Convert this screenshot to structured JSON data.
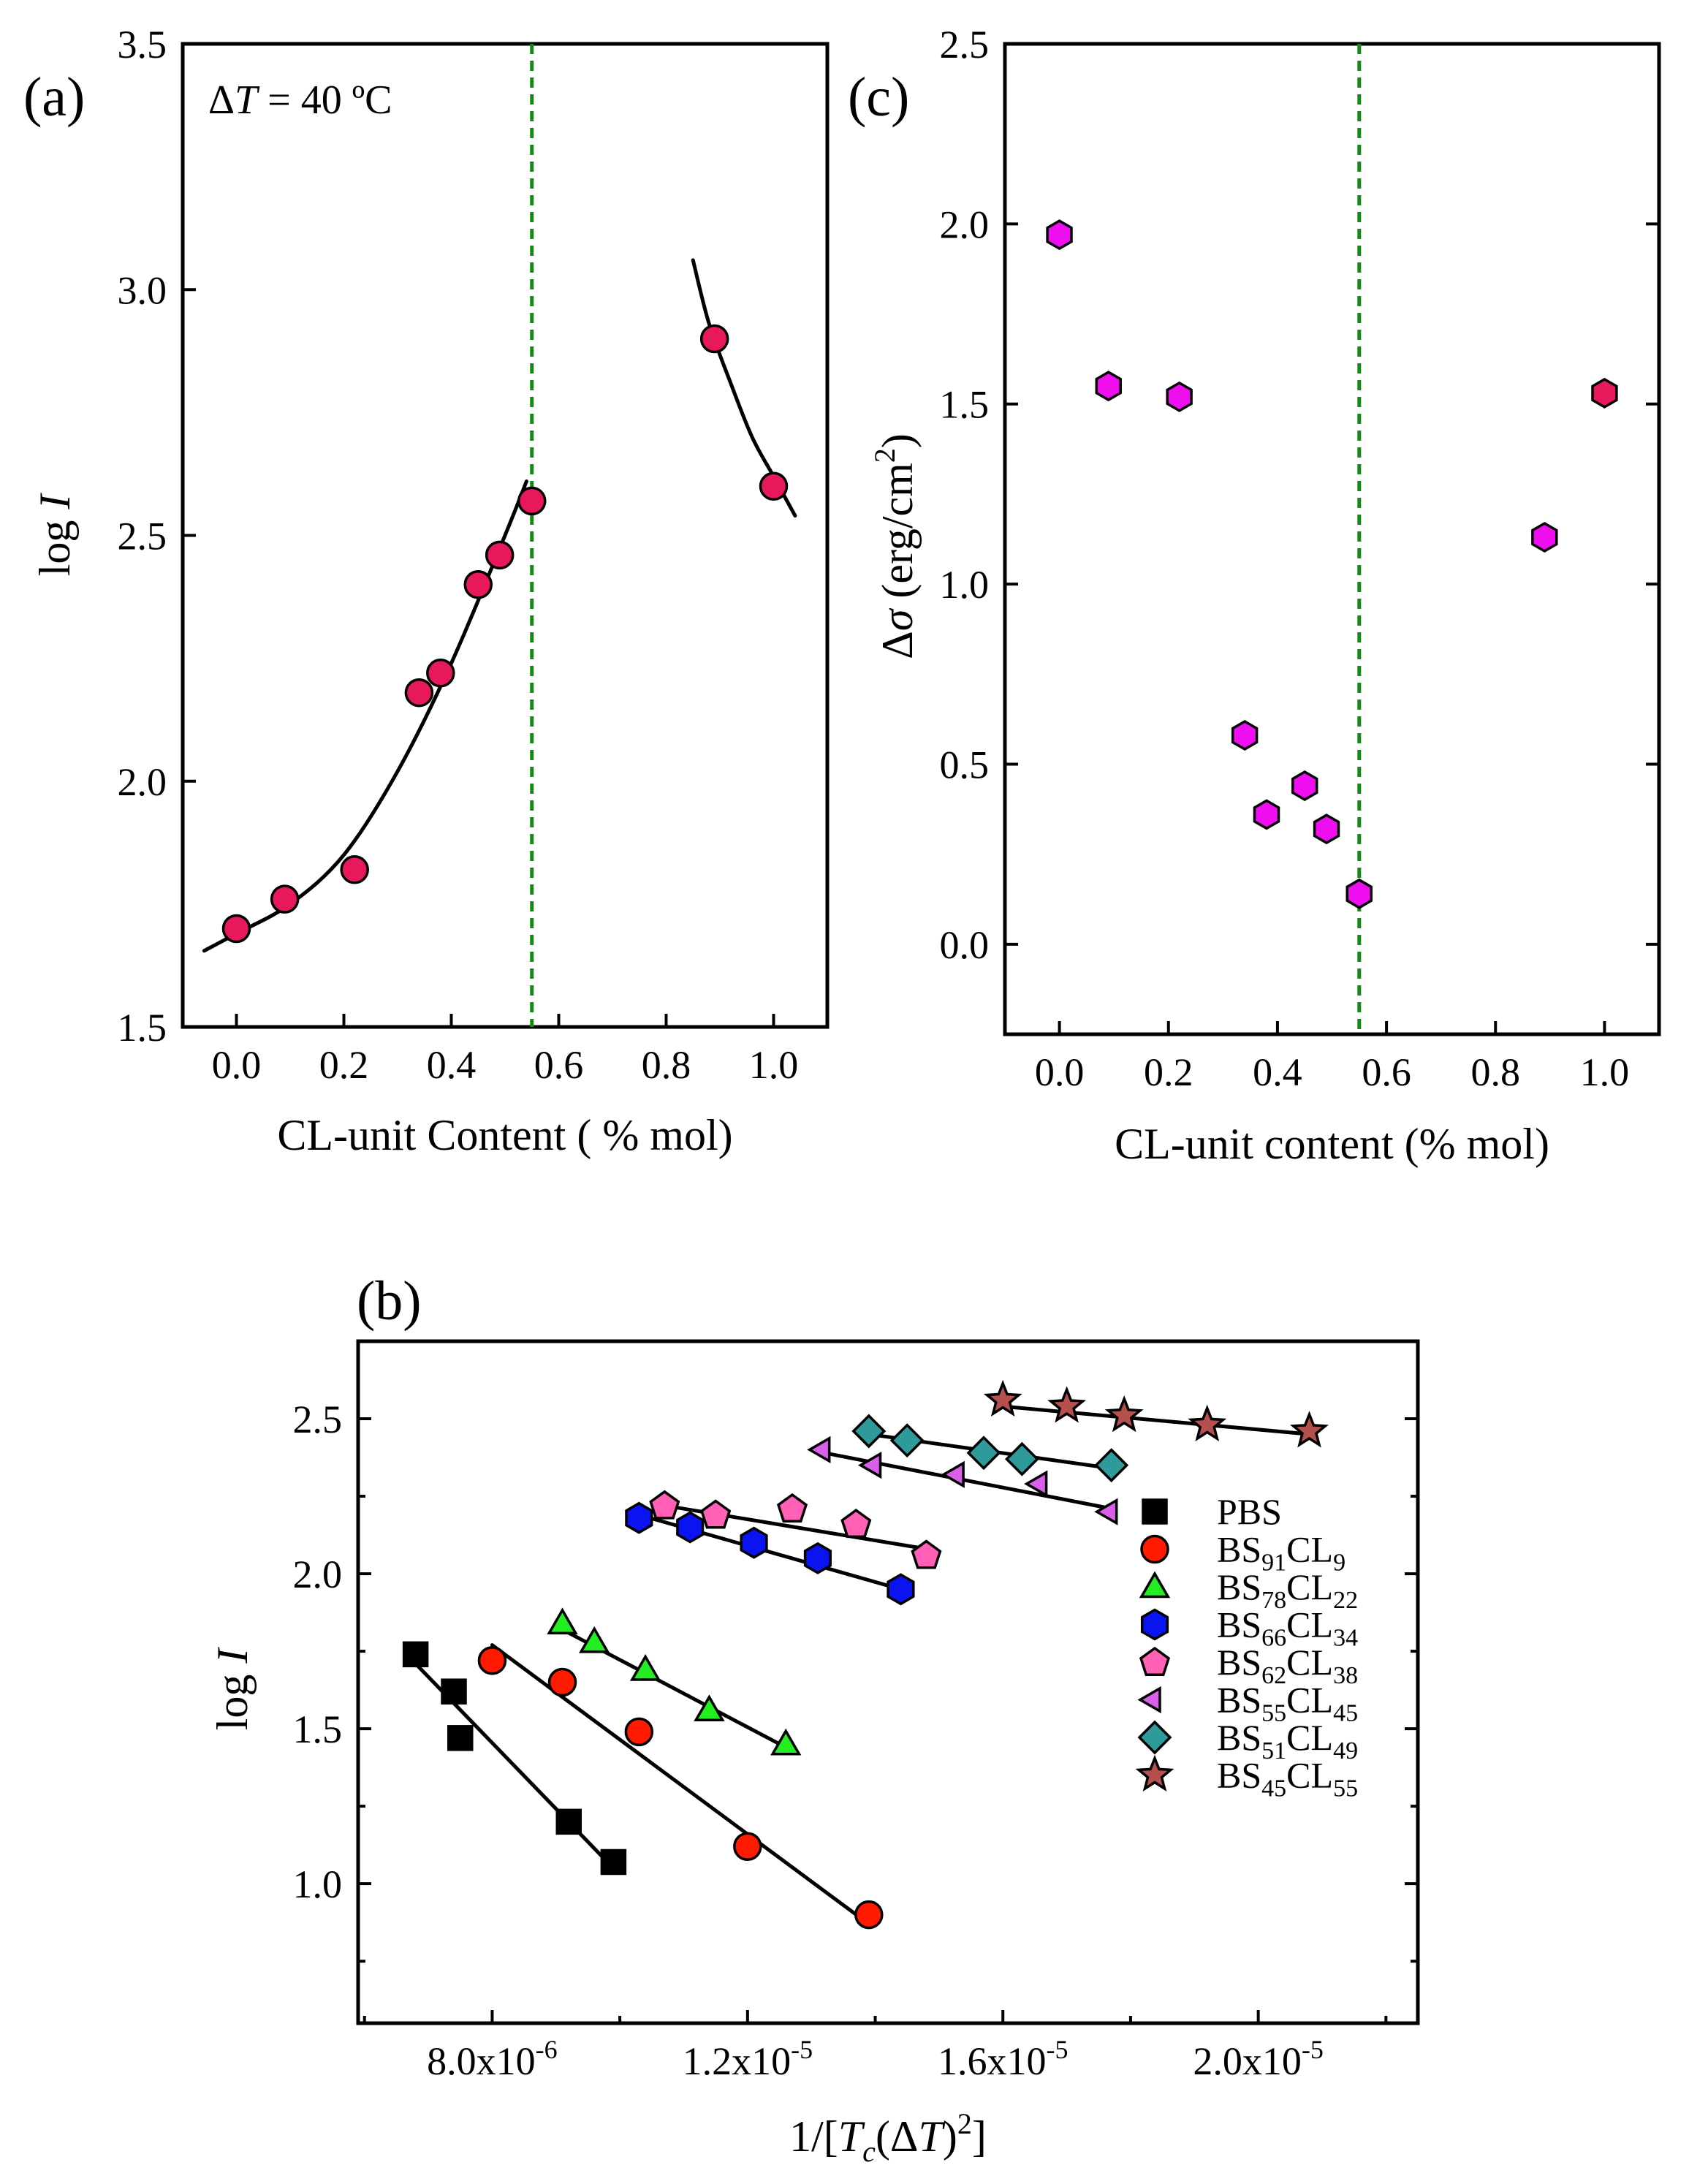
{
  "chart_data": [
    {
      "id": "a",
      "type": "scatter",
      "panel_label": "(a)",
      "annotation": {
        "prefix": "Δ",
        "var": "T",
        "rest": " = 40 ºC"
      },
      "xlabel": "CL-unit Content ( % mol)",
      "ylabel": {
        "main": "log ",
        "var": "I"
      },
      "xlim": [
        -0.1,
        1.1
      ],
      "ylim": [
        1.5,
        3.5
      ],
      "xticks": [
        0.0,
        0.2,
        0.4,
        0.6,
        0.8,
        1.0
      ],
      "xtick_labels": [
        "0.0",
        "0.2",
        "0.4",
        "0.6",
        "0.8",
        "1.0"
      ],
      "yticks": [
        1.5,
        2.0,
        2.5,
        3.0,
        3.5
      ],
      "ytick_labels": [
        "1.5",
        "2.0",
        "2.5",
        "3.0",
        "3.5"
      ],
      "vline_x": 0.55,
      "vline_color": "#138a13",
      "marker_color": "#e8195a",
      "points": [
        {
          "x": 0.0,
          "y": 1.7
        },
        {
          "x": 0.09,
          "y": 1.76
        },
        {
          "x": 0.22,
          "y": 1.82
        },
        {
          "x": 0.34,
          "y": 2.18
        },
        {
          "x": 0.38,
          "y": 2.22
        },
        {
          "x": 0.45,
          "y": 2.4
        },
        {
          "x": 0.49,
          "y": 2.46
        },
        {
          "x": 0.55,
          "y": 2.57
        },
        {
          "x": 0.89,
          "y": 2.9
        },
        {
          "x": 1.0,
          "y": 2.6
        }
      ],
      "fit_curves": [
        {
          "x": [
            -0.06,
            0.0,
            0.1,
            0.2,
            0.3,
            0.4,
            0.5,
            0.54
          ],
          "y": [
            1.655,
            1.69,
            1.75,
            1.85,
            2.02,
            2.24,
            2.5,
            2.61
          ]
        },
        {
          "x": [
            0.85,
            0.88,
            0.92,
            0.96,
            1.0,
            1.04
          ],
          "y": [
            3.06,
            2.93,
            2.81,
            2.7,
            2.62,
            2.54
          ]
        }
      ]
    },
    {
      "id": "c",
      "type": "scatter",
      "panel_label": "(c)",
      "xlabel": "CL-unit content (% mol)",
      "ylabel": {
        "main": "Δ",
        "var": "σ",
        "rest": " (erg/cm",
        "sup": "2",
        "end": ")"
      },
      "xlim": [
        -0.1,
        1.1
      ],
      "ylim": [
        -0.25,
        2.5
      ],
      "xticks": [
        0.0,
        0.2,
        0.4,
        0.6,
        0.8,
        1.0
      ],
      "xtick_labels": [
        "0.0",
        "0.2",
        "0.4",
        "0.6",
        "0.8",
        "1.0"
      ],
      "yticks": [
        0.0,
        0.5,
        1.0,
        1.5,
        2.0,
        2.5
      ],
      "ytick_labels": [
        "0.0",
        "0.5",
        "1.0",
        "1.5",
        "2.0",
        "2.5"
      ],
      "vline_x": 0.55,
      "vline_color": "#138a13",
      "marker_color": "#ee0ef0",
      "last_marker_color": "#e8195a",
      "points": [
        {
          "x": 0.0,
          "y": 1.97
        },
        {
          "x": 0.09,
          "y": 1.55
        },
        {
          "x": 0.22,
          "y": 1.52
        },
        {
          "x": 0.34,
          "y": 0.58
        },
        {
          "x": 0.38,
          "y": 0.36
        },
        {
          "x": 0.45,
          "y": 0.44
        },
        {
          "x": 0.49,
          "y": 0.32
        },
        {
          "x": 0.55,
          "y": 0.14
        },
        {
          "x": 0.89,
          "y": 1.13
        },
        {
          "x": 1.0,
          "y": 1.53
        }
      ]
    },
    {
      "id": "b",
      "type": "scatter",
      "panel_label": "(b)",
      "xlabel": {
        "pre": "1/[",
        "var": "T",
        "sub": "c",
        "mid": "(Δ",
        "var2": "T",
        "end": ")",
        "sup": "2",
        "close": "]"
      },
      "ylabel": {
        "main": "log ",
        "var": "I"
      },
      "xlim": [
        5.9e-06,
        2.25e-05
      ],
      "ylim": [
        0.55,
        2.75
      ],
      "xticks": [
        8e-06,
        1.2e-05,
        1.6e-05,
        2e-05
      ],
      "xtick_labels": [
        {
          "base": "8.0x10",
          "exp": "-6"
        },
        {
          "base": "1.2x10",
          "exp": "-5"
        },
        {
          "base": "1.6x10",
          "exp": "-5"
        },
        {
          "base": "2.0x10",
          "exp": "-5"
        }
      ],
      "minor_xticks": [
        6e-06,
        1e-05,
        1.4e-05,
        1.8e-05,
        2.2e-05
      ],
      "yticks": [
        1.0,
        1.5,
        2.0,
        2.5
      ],
      "ytick_labels": [
        "1.0",
        "1.5",
        "2.0",
        "2.5"
      ],
      "minor_yticks": [
        0.75,
        1.25,
        1.75,
        2.25
      ],
      "series": [
        {
          "name": "PBS",
          "label": {
            "main": "PBS"
          },
          "marker": "square",
          "color": "#000000",
          "x": [
            6.8e-06,
            7.4e-06,
            7.5e-06,
            9.2e-06,
            9.9e-06
          ],
          "y": [
            1.74,
            1.62,
            1.47,
            1.2,
            1.07
          ],
          "fit": {
            "x": [
              6.8e-06,
              9.9e-06
            ],
            "y": [
              1.71,
              1.05
            ]
          }
        },
        {
          "name": "BS91CL9",
          "label": {
            "a": "BS",
            "s1": "91",
            "b": "CL",
            "s2": "9"
          },
          "marker": "circle",
          "color": "#ff1a00",
          "x": [
            8e-06,
            9.1e-06,
            1.03e-05,
            1.2e-05,
            1.39e-05
          ],
          "y": [
            1.72,
            1.65,
            1.49,
            1.12,
            0.9
          ],
          "fit": {
            "x": [
              8e-06,
              1.39e-05
            ],
            "y": [
              1.77,
              0.87
            ]
          }
        },
        {
          "name": "BS78CL22",
          "label": {
            "a": "BS",
            "s1": "78",
            "b": "CL",
            "s2": "22"
          },
          "marker": "triangle-up",
          "color": "#22ee22",
          "x": [
            9.1e-06,
            9.6e-06,
            1.04e-05,
            1.14e-05,
            1.26e-05
          ],
          "y": [
            1.84,
            1.78,
            1.69,
            1.56,
            1.45
          ],
          "fit": {
            "x": [
              9.1e-06,
              1.26e-05
            ],
            "y": [
              1.82,
              1.44
            ]
          }
        },
        {
          "name": "BS66CL34",
          "label": {
            "a": "BS",
            "s1": "66",
            "b": "CL",
            "s2": "34"
          },
          "marker": "hexagon",
          "color": "#0a14f0",
          "x": [
            1.03e-05,
            1.11e-05,
            1.21e-05,
            1.31e-05,
            1.44e-05
          ],
          "y": [
            2.18,
            2.15,
            2.1,
            2.05,
            1.95
          ],
          "fit": {
            "x": [
              1.03e-05,
              1.44e-05
            ],
            "y": [
              2.19,
              1.95
            ]
          }
        },
        {
          "name": "BS62CL38",
          "label": {
            "a": "BS",
            "s1": "62",
            "b": "CL",
            "s2": "38"
          },
          "marker": "pentagon",
          "color": "#ff5fb4",
          "x": [
            1.07e-05,
            1.15e-05,
            1.27e-05,
            1.37e-05,
            1.48e-05
          ],
          "y": [
            2.22,
            2.19,
            2.21,
            2.16,
            2.06
          ],
          "fit": {
            "x": [
              1.07e-05,
              1.48e-05
            ],
            "y": [
              2.22,
              2.08
            ]
          }
        },
        {
          "name": "BS55CL45",
          "label": {
            "a": "BS",
            "s1": "55",
            "b": "CL",
            "s2": "45"
          },
          "marker": "triangle-left",
          "color": "#d95ee8",
          "x": [
            1.32e-05,
            1.4e-05,
            1.53e-05,
            1.66e-05,
            1.77e-05
          ],
          "y": [
            2.4,
            2.35,
            2.32,
            2.29,
            2.2
          ],
          "fit": {
            "x": [
              1.32e-05,
              1.77e-05
            ],
            "y": [
              2.39,
              2.21
            ]
          }
        },
        {
          "name": "BS51CL49",
          "label": {
            "a": "BS",
            "s1": "51",
            "b": "CL",
            "s2": "49"
          },
          "marker": "diamond",
          "color": "#2e9a9a",
          "x": [
            1.39e-05,
            1.45e-05,
            1.57e-05,
            1.63e-05,
            1.77e-05
          ],
          "y": [
            2.46,
            2.43,
            2.39,
            2.37,
            2.35
          ],
          "fit": {
            "x": [
              1.39e-05,
              1.77e-05
            ],
            "y": [
              2.45,
              2.34
            ]
          }
        },
        {
          "name": "BS45CL55",
          "label": {
            "a": "BS",
            "s1": "45",
            "b": "CL",
            "s2": "55"
          },
          "marker": "star",
          "color": "#b5504e",
          "x": [
            1.6e-05,
            1.7e-05,
            1.79e-05,
            1.92e-05,
            2.08e-05
          ],
          "y": [
            2.56,
            2.54,
            2.51,
            2.48,
            2.46
          ],
          "fit": {
            "x": [
              1.6e-05,
              2.08e-05
            ],
            "y": [
              2.54,
              2.45
            ]
          }
        }
      ]
    }
  ]
}
